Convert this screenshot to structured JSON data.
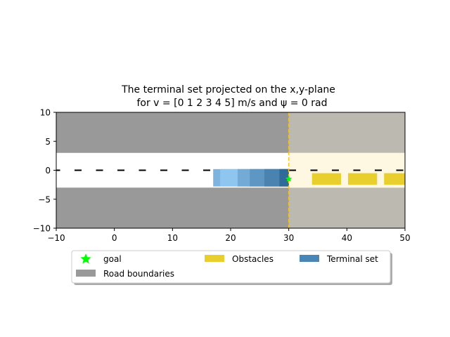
{
  "chart_data": {
    "type": "area",
    "title_line1": "The terminal set projected on the x,y-plane",
    "title_line2": "for v = [0 1 2 3 4 5] m/s and ψ = 0 rad",
    "xlabel": "",
    "ylabel": "",
    "xlim": [
      -10,
      50
    ],
    "ylim": [
      -10,
      10
    ],
    "x_ticks": [
      -10,
      0,
      10,
      20,
      30,
      40,
      50
    ],
    "y_ticks": [
      -10,
      -5,
      0,
      5,
      10
    ],
    "x_tick_labels": [
      "−10",
      "0",
      "10",
      "20",
      "30",
      "40",
      "50"
    ],
    "y_tick_labels": [
      "−10",
      "−5",
      "0",
      "5",
      "10"
    ],
    "grid": false,
    "legend_position": "below the axes",
    "legend": [
      {
        "label": "goal",
        "kind": "star",
        "color": "#00ff00"
      },
      {
        "label": "Obstacles",
        "kind": "patch",
        "color": "#e8cf2e"
      },
      {
        "label": "Terminal set",
        "kind": "patch",
        "color": "#4a86b5"
      },
      {
        "label": "Road boundaries",
        "kind": "patch",
        "color": "#999999"
      }
    ],
    "road": {
      "boundary_color": "#999999",
      "lane_color": "#ffffff",
      "upper_boundary": [
        3,
        10
      ],
      "lower_boundary": [
        -10,
        -3
      ],
      "centerline_y": 0,
      "centerline_dash": true
    },
    "goal_region": {
      "x_start": 30,
      "x_end": 50,
      "color": "#fdf6dc"
    },
    "goal_line": {
      "x": 30,
      "color": "#f2c12e"
    },
    "goal": {
      "x": 30,
      "y": -1.5,
      "color": "#00ff00"
    },
    "obstacles": [
      {
        "x0": 34,
        "x1": 39,
        "y0": -2.5,
        "y1": -0.5
      },
      {
        "x0": 40.2,
        "x1": 45.2,
        "y0": -2.5,
        "y1": -0.5
      },
      {
        "x0": 46.4,
        "x1": 50,
        "y0": -2.5,
        "y1": -0.5
      }
    ],
    "obstacle_color": "#e8cf2e",
    "terminal_set": [
      {
        "x0": 17,
        "x1": 30,
        "y0": -2.8,
        "y1": 0.2,
        "color": "#7db3de"
      },
      {
        "x0": 18.2,
        "x1": 30,
        "y0": -2.8,
        "y1": 0.2,
        "color": "#8ec6ef"
      },
      {
        "x0": 21.2,
        "x1": 30,
        "y0": -2.8,
        "y1": 0.2,
        "color": "#74aad6"
      },
      {
        "x0": 23.3,
        "x1": 30,
        "y0": -2.8,
        "y1": 0.2,
        "color": "#5f97c4"
      },
      {
        "x0": 25.8,
        "x1": 30,
        "y0": -2.8,
        "y1": 0.2,
        "color": "#4a82b0"
      },
      {
        "x0": 28.4,
        "x1": 30,
        "y0": -2.8,
        "y1": 0.2,
        "color": "#2f6a98"
      }
    ]
  }
}
